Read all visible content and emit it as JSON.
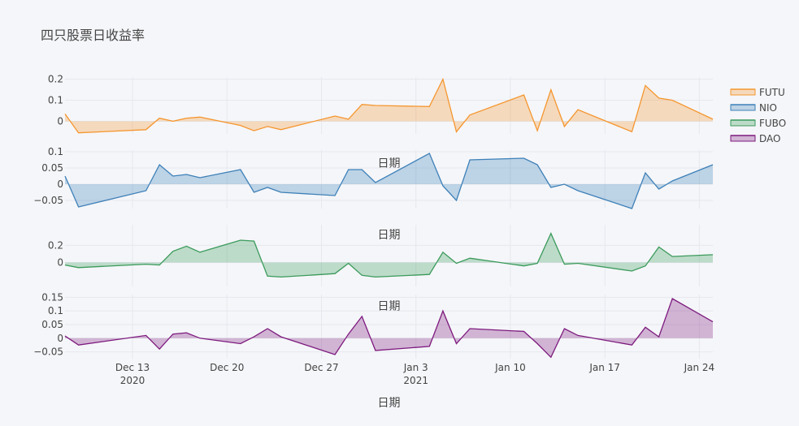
{
  "chart_data": {
    "type": "area",
    "title": "四只股票日收益率",
    "xlabel": "日期",
    "x": [
      "2020-12-08",
      "2020-12-09",
      "2020-12-14",
      "2020-12-15",
      "2020-12-16",
      "2020-12-17",
      "2020-12-18",
      "2020-12-21",
      "2020-12-22",
      "2020-12-23",
      "2020-12-24",
      "2020-12-28",
      "2020-12-29",
      "2020-12-30",
      "2020-12-31",
      "2021-01-04",
      "2021-01-05",
      "2021-01-06",
      "2021-01-07",
      "2021-01-11",
      "2021-01-12",
      "2021-01-13",
      "2021-01-14",
      "2021-01-15",
      "2021-01-19",
      "2021-01-20",
      "2021-01-21",
      "2021-01-22",
      "2021-01-25"
    ],
    "x_ticks": [
      {
        "date": "2020-12-13",
        "label": "Dec 13",
        "sublabel": "2020"
      },
      {
        "date": "2020-12-20",
        "label": "Dec 20",
        "sublabel": ""
      },
      {
        "date": "2020-12-27",
        "label": "Dec 27",
        "sublabel": ""
      },
      {
        "date": "2021-01-03",
        "label": "Jan 3",
        "sublabel": "2021"
      },
      {
        "date": "2021-01-10",
        "label": "Jan 10",
        "sublabel": ""
      },
      {
        "date": "2021-01-17",
        "label": "Jan 17",
        "sublabel": ""
      },
      {
        "date": "2021-01-24",
        "label": "Jan 24",
        "sublabel": ""
      }
    ],
    "xlim": [
      "2020-12-08",
      "2021-01-25"
    ],
    "series": [
      {
        "name": "FUTU",
        "color": "#f5962f",
        "fill": "rgba(245,150,47,0.3)",
        "ylim": [
          -0.06,
          0.21
        ],
        "y_ticks": [
          {
            "v": 0.2,
            "label": "0.2"
          },
          {
            "v": 0.1,
            "label": "0.1"
          },
          {
            "v": 0,
            "label": "0"
          }
        ],
        "values": [
          0.035,
          -0.055,
          -0.04,
          0.015,
          0.0,
          0.015,
          0.02,
          -0.02,
          -0.045,
          -0.025,
          -0.04,
          0.025,
          0.01,
          0.08,
          0.075,
          0.07,
          0.2,
          -0.05,
          0.03,
          0.125,
          -0.045,
          0.15,
          -0.025,
          0.055,
          -0.05,
          0.17,
          0.11,
          0.1,
          0.01
        ]
      },
      {
        "name": "NIO",
        "color": "#3d80b8",
        "fill": "rgba(61,128,184,0.3)",
        "ylim": [
          -0.075,
          0.105
        ],
        "y_ticks": [
          {
            "v": 0.1,
            "label": "0.1"
          },
          {
            "v": 0.05,
            "label": "0.05"
          },
          {
            "v": 0,
            "label": "0"
          },
          {
            "v": -0.05,
            "label": "−0.05"
          }
        ],
        "values": [
          0.025,
          -0.07,
          -0.02,
          0.06,
          0.025,
          0.03,
          0.02,
          0.045,
          -0.025,
          -0.01,
          -0.025,
          -0.035,
          0.045,
          0.045,
          0.005,
          0.095,
          -0.005,
          -0.05,
          0.075,
          0.08,
          0.06,
          -0.01,
          0.0,
          -0.02,
          -0.075,
          0.035,
          -0.015,
          0.01,
          0.06
        ]
      },
      {
        "name": "FUBO",
        "color": "#3a9a5b",
        "fill": "rgba(58,154,91,0.3)",
        "ylim": [
          -0.28,
          0.44
        ],
        "y_ticks": [
          {
            "v": 0.2,
            "label": "0.2"
          },
          {
            "v": 0,
            "label": "0"
          }
        ],
        "values": [
          -0.03,
          -0.06,
          -0.02,
          -0.03,
          0.13,
          0.19,
          0.12,
          0.26,
          0.25,
          -0.16,
          -0.17,
          -0.13,
          -0.01,
          -0.15,
          -0.17,
          -0.14,
          0.12,
          -0.01,
          0.05,
          -0.04,
          -0.01,
          0.34,
          -0.02,
          -0.01,
          -0.1,
          -0.04,
          0.18,
          0.07,
          0.09
        ]
      },
      {
        "name": "DAO",
        "color": "#7d1a7e",
        "fill": "rgba(125,26,126,0.3)",
        "ylim": [
          -0.075,
          0.16
        ],
        "y_ticks": [
          {
            "v": 0.15,
            "label": "0.15"
          },
          {
            "v": 0.1,
            "label": "0.1"
          },
          {
            "v": 0.05,
            "label": "0.05"
          },
          {
            "v": 0,
            "label": "0"
          },
          {
            "v": -0.05,
            "label": "−0.05"
          }
        ],
        "values": [
          0.008,
          -0.025,
          0.01,
          -0.04,
          0.015,
          0.02,
          0.0,
          -0.02,
          0.005,
          0.035,
          0.005,
          -0.06,
          0.015,
          0.08,
          -0.045,
          -0.03,
          0.1,
          -0.02,
          0.035,
          0.025,
          -0.02,
          -0.07,
          0.035,
          0.01,
          -0.025,
          0.04,
          0.005,
          0.145,
          0.06
        ]
      }
    ],
    "legend_position": "top-right",
    "grid": true
  }
}
